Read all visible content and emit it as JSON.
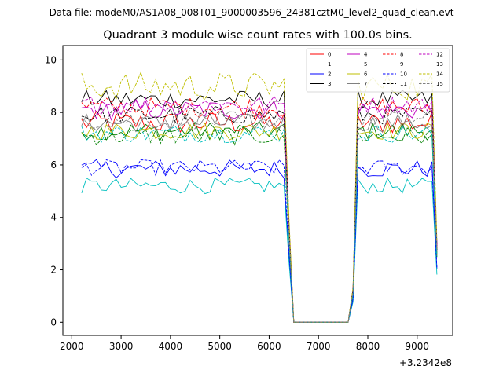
{
  "suptitle": "Data file: modeM0/AS1A08_008T01_9000003596_24381cztM0_level2_quad_clean.evt",
  "chart_data": {
    "type": "line",
    "title": "Quadrant 3 module wise count rates with 100.0s bins.",
    "xlabel": "",
    "ylabel": "",
    "x_offset_label": "+3.2342e8",
    "xlim": [
      1820,
      9720
    ],
    "ylim": [
      -0.5,
      10.55
    ],
    "x_ticks": [
      2000,
      3000,
      4000,
      5000,
      6000,
      7000,
      8000,
      9000
    ],
    "x_tick_labels": [
      "2000",
      "3000",
      "4000",
      "5000",
      "6000",
      "7000",
      "8000",
      "9000"
    ],
    "y_ticks": [
      0,
      2,
      4,
      6,
      8,
      10
    ],
    "y_tick_labels": [
      "0",
      "2",
      "4",
      "6",
      "8",
      "10"
    ],
    "legend_position": "upper right",
    "segments": [
      {
        "x_start": 2200,
        "x_end": 6300,
        "step": 100
      },
      {
        "x_start": 6400,
        "x_end": 7600,
        "step": 100
      },
      {
        "x_start": 7700,
        "x_end": 9400,
        "step": 100
      }
    ],
    "gap_value": 0.0,
    "series": [
      {
        "name": "0",
        "color": "#ff0000",
        "dash": false,
        "level": 7.6,
        "amp": 0.45
      },
      {
        "name": "1",
        "color": "#008000",
        "dash": false,
        "level": 7.3,
        "amp": 0.35
      },
      {
        "name": "2",
        "color": "#0000ff",
        "dash": false,
        "level": 5.85,
        "amp": 0.35
      },
      {
        "name": "3",
        "color": "#000000",
        "dash": false,
        "level": 8.5,
        "amp": 0.35
      },
      {
        "name": "4",
        "color": "#bf00bf",
        "dash": false,
        "level": 8.1,
        "amp": 0.4
      },
      {
        "name": "5",
        "color": "#00bfbf",
        "dash": false,
        "level": 5.2,
        "amp": 0.3
      },
      {
        "name": "6",
        "color": "#bfbf00",
        "dash": false,
        "level": 7.3,
        "amp": 0.35
      },
      {
        "name": "7",
        "color": "#808080",
        "dash": false,
        "level": 7.6,
        "amp": 0.35
      },
      {
        "name": "8",
        "color": "#ff0000",
        "dash": true,
        "level": 8.2,
        "amp": 0.4
      },
      {
        "name": "9",
        "color": "#008000",
        "dash": true,
        "level": 7.1,
        "amp": 0.35
      },
      {
        "name": "10",
        "color": "#0000ff",
        "dash": true,
        "level": 5.9,
        "amp": 0.3
      },
      {
        "name": "11",
        "color": "#000000",
        "dash": true,
        "level": 7.9,
        "amp": 0.35
      },
      {
        "name": "12",
        "color": "#bf00bf",
        "dash": true,
        "level": 8.3,
        "amp": 0.35
      },
      {
        "name": "13",
        "color": "#00bfbf",
        "dash": true,
        "level": 7.2,
        "amp": 0.35
      },
      {
        "name": "14",
        "color": "#bfbf00",
        "dash": true,
        "level": 9.0,
        "amp": 0.55
      },
      {
        "name": "15",
        "color": "#808080",
        "dash": true,
        "level": 7.7,
        "amp": 0.35
      }
    ]
  }
}
